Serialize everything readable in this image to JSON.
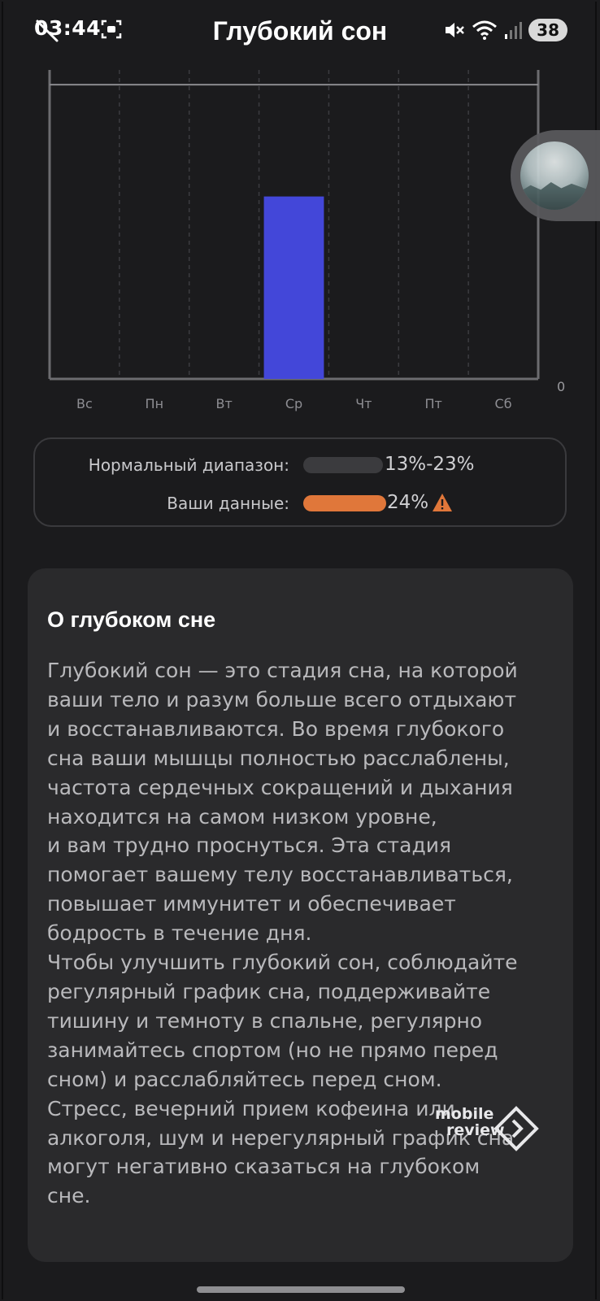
{
  "status_bar": {
    "time": "03:44",
    "battery": "38",
    "icons": [
      "back-arrow-icon",
      "screenshot-icon",
      "mute-icon",
      "wifi-icon",
      "signal-icon"
    ]
  },
  "header": {
    "title": "Глубокий сон"
  },
  "chart_data": {
    "type": "bar",
    "categories": [
      "Вс",
      "Пн",
      "Вт",
      "Ср",
      "Чт",
      "Пт",
      "Сб"
    ],
    "values": [
      0,
      0,
      0,
      0.62,
      0,
      0,
      0
    ],
    "reference_line": 1,
    "ylim": [
      0,
      1.05
    ],
    "y_tick_labels": [
      "0"
    ],
    "bar_color": "#4347d9",
    "grid": "vertical-dashed"
  },
  "range": {
    "normal_label": "Нормальный диапазон:",
    "normal_value": "13%-23%",
    "normal_color": "#3b3b3e",
    "yours_label": "Ваши данные:",
    "yours_value": "24%",
    "yours_color": "#e0773a",
    "warning_icon": "warning-icon"
  },
  "info": {
    "title": "О глубоком сне",
    "text": "Глубокий сон — это стадия сна, на которой\nваши тело и разум больше всего отдыхают\nи восстанавливаются. Во время глубокого\nсна ваши мышцы полностью расслаблены,\nчастота сердечных сокращений и дыхания\nнаходится на самом низком уровне,\nи вам трудно проснуться. Эта стадия\nпомогает вашему телу восстанавливаться,\nповышает иммунитет и обеспечивает\nбодрость в течение дня.\nЧтобы улучшить глубокий сон, соблюдайте\nрегулярный график сна, поддерживайте\nтишину и темноту в спальне, регулярно\nзанимайтесь спортом (но не прямо перед\nсном) и расслабляйтесь перед сном.\nСтресс, вечерний прием кофеина или\nалкоголя, шум и нерегулярный график сна\nмогут негативно сказаться на глубоком\nсне."
  },
  "watermark": {
    "line1": "mobile",
    "line2": "review"
  }
}
